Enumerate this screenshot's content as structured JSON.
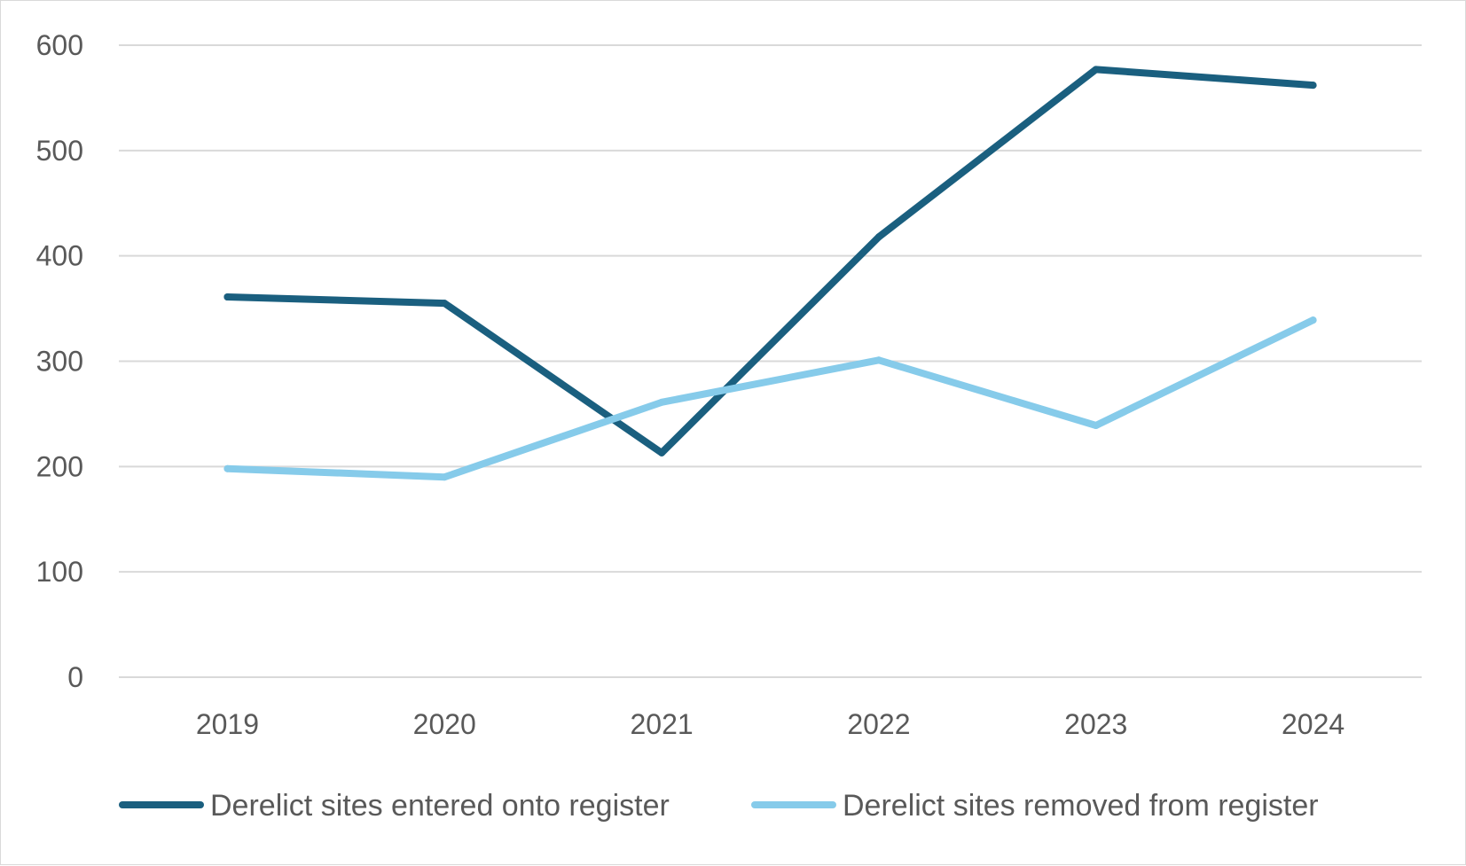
{
  "chart_data": {
    "type": "line",
    "x": [
      "2019",
      "2020",
      "2021",
      "2022",
      "2023",
      "2024"
    ],
    "series": [
      {
        "name": "Derelict sites entered onto register",
        "values": [
          361,
          355,
          213,
          418,
          577,
          562
        ],
        "color": "#1a5f7f"
      },
      {
        "name": "Derelict sites removed from register",
        "values": [
          198,
          190,
          261,
          301,
          239,
          339
        ],
        "color": "#86cbea"
      }
    ],
    "y_ticks": [
      "0",
      "100",
      "200",
      "300",
      "400",
      "500",
      "600"
    ],
    "ylim": [
      0,
      600
    ],
    "grid": true,
    "legend_position": "bottom"
  }
}
